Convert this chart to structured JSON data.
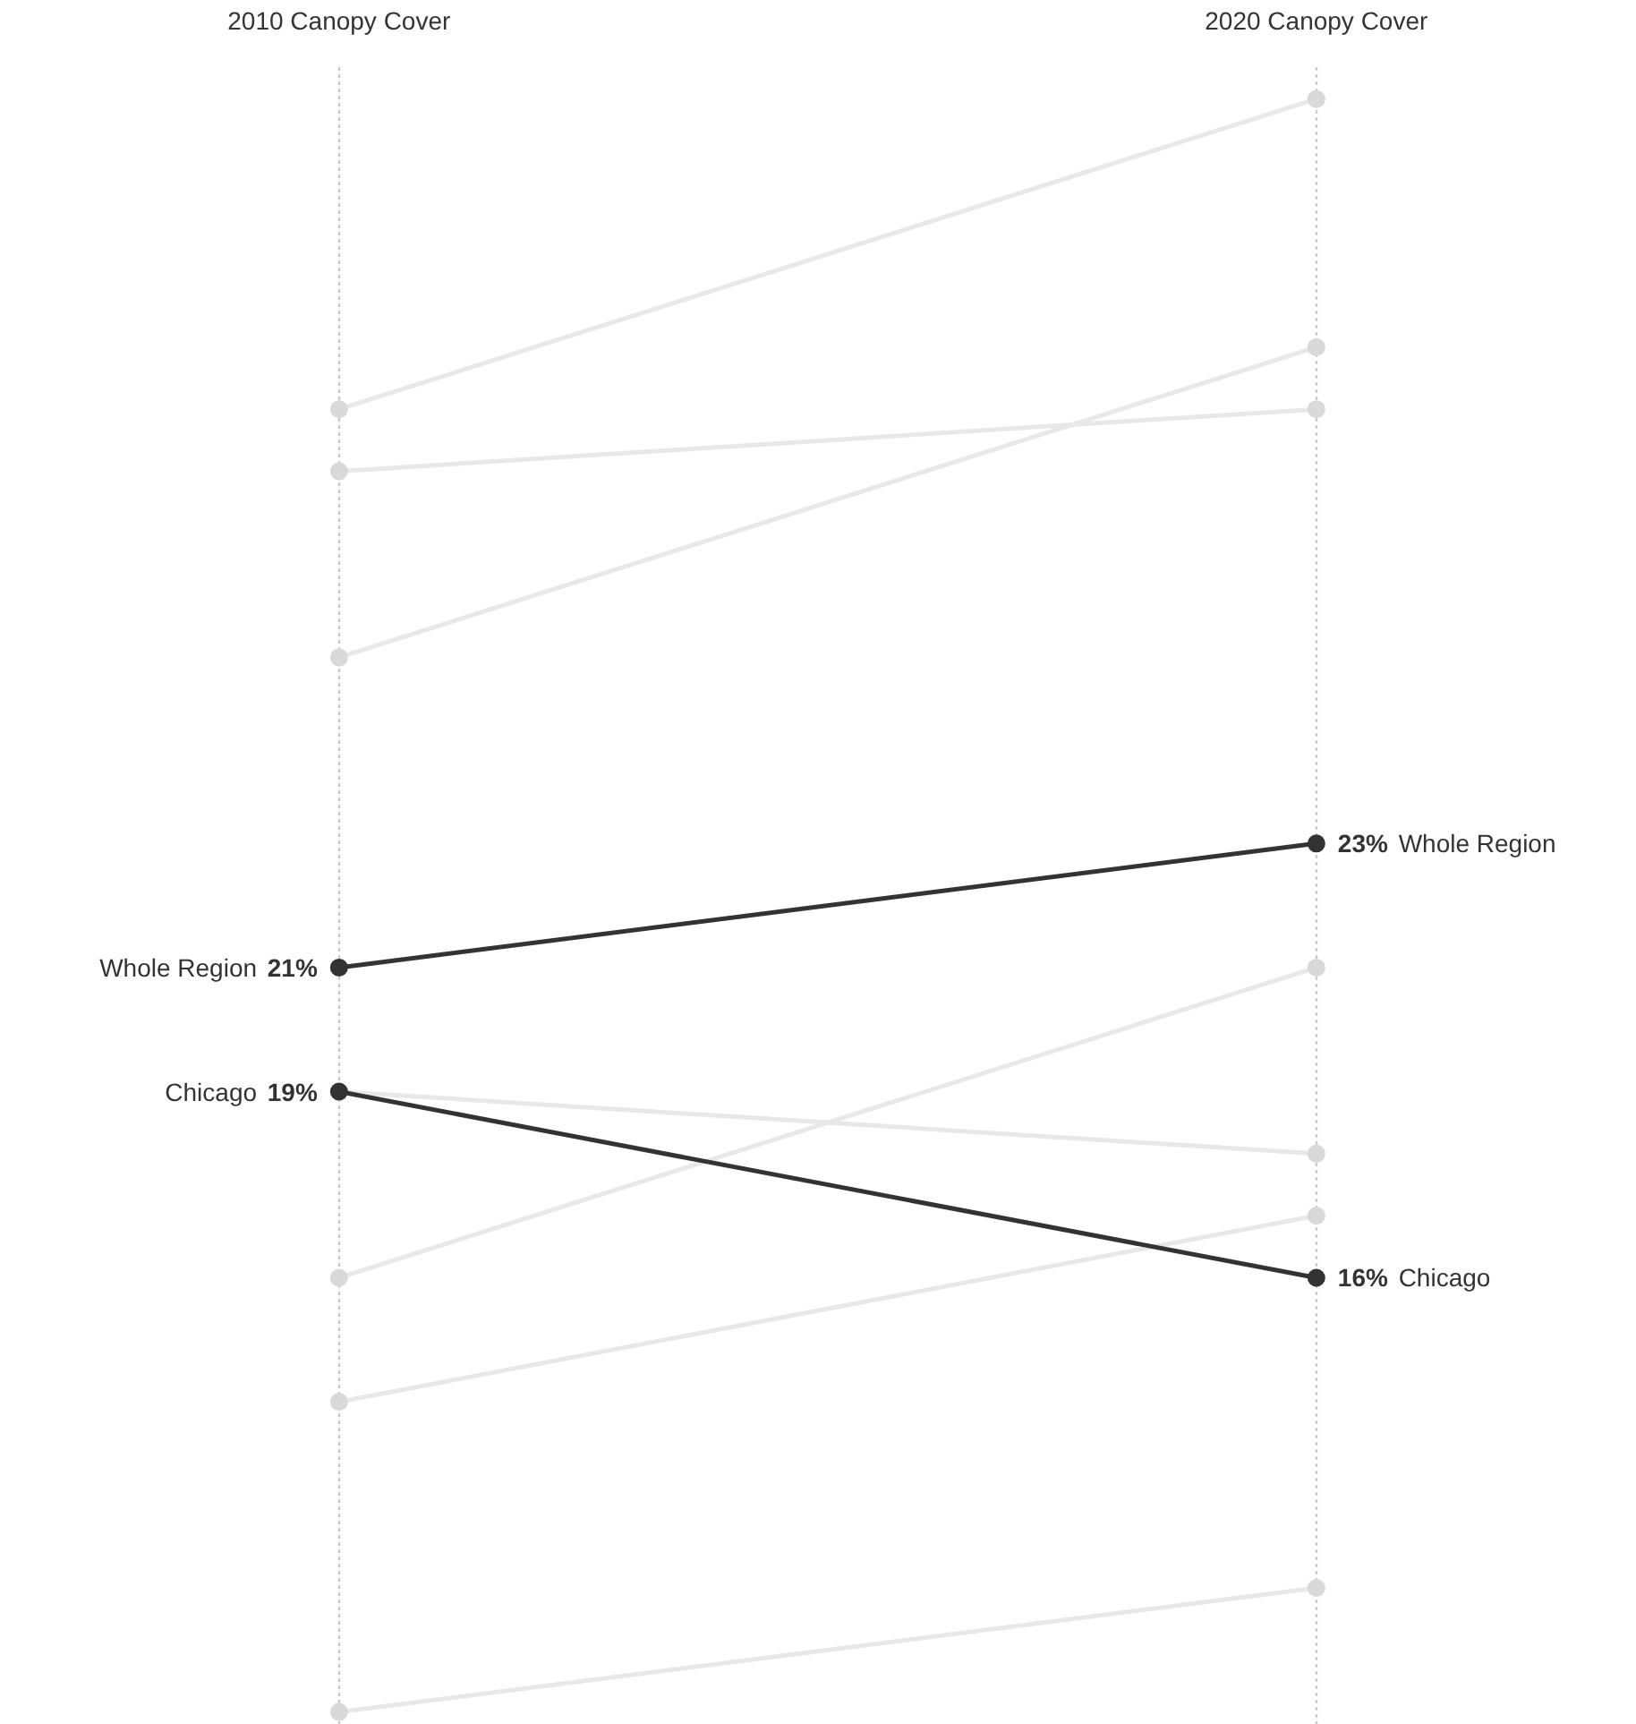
{
  "chart_data": {
    "type": "line",
    "categories": [
      "2010 Canopy Cover",
      "2020 Canopy Cover"
    ],
    "grid": "x",
    "marker": "circle",
    "tick_labels": "x",
    "series": [
      {
        "color": "#e8e8e8",
        "values": [
          30,
          35
        ]
      },
      {
        "color": "#e8e8e8",
        "values": [
          29,
          30
        ]
      },
      {
        "color": "#e8e8e8",
        "values": [
          26,
          31
        ]
      },
      {
        "color": "#e8e8e8",
        "values": [
          19,
          18
        ]
      },
      {
        "color": "#e8e8e8",
        "values": [
          16,
          21
        ]
      },
      {
        "color": "#e8e8e8",
        "values": [
          14,
          17
        ]
      },
      {
        "color": "#e8e8e8",
        "values": [
          9,
          11
        ]
      },
      {
        "name": "Whole Region",
        "color": "#333333",
        "values": [
          21,
          23
        ],
        "value_labels": [
          "21%",
          "23%"
        ]
      },
      {
        "name": "Chicago",
        "color": "#333333",
        "values": [
          19,
          16
        ],
        "value_labels": [
          "19%",
          "16%"
        ]
      }
    ]
  }
}
